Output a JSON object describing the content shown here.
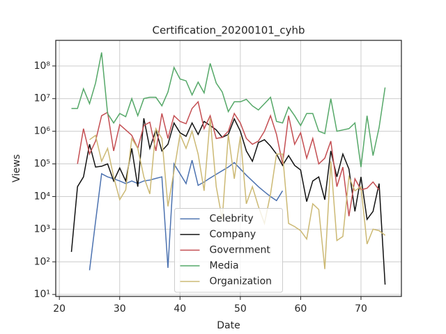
{
  "chart_data": {
    "type": "line",
    "title": "Certification_20200101_cyhb",
    "x_label": "Date",
    "y_label": "Views",
    "x": [
      22,
      23,
      24,
      25,
      26,
      27,
      28,
      29,
      30,
      31,
      32,
      33,
      34,
      35,
      36,
      37,
      38,
      39,
      40,
      41,
      42,
      43,
      44,
      45,
      46,
      47,
      48,
      49,
      50,
      51,
      52,
      53,
      54,
      55,
      56,
      57,
      58,
      59,
      60,
      61,
      62,
      63,
      64,
      65,
      66,
      67,
      68,
      69,
      70,
      71,
      72,
      73,
      74
    ],
    "series": [
      {
        "name": "Celebrity",
        "color": "#4c72b0",
        "values": [
          null,
          null,
          null,
          55,
          1700,
          50000,
          40000,
          35000,
          30000,
          25000,
          30000,
          25000,
          30000,
          32000,
          36000,
          40000,
          65,
          100000,
          50000,
          25000,
          130000,
          22000,
          28000,
          37000,
          48000,
          62000,
          80000,
          110000,
          70000,
          45000,
          30000,
          20000,
          14000,
          10000,
          7500,
          15000,
          null,
          null,
          null,
          null,
          null,
          null,
          null,
          null,
          null,
          null,
          null,
          null,
          null,
          null,
          null,
          null,
          null
        ]
      },
      {
        "name": "Company",
        "color": "#111111",
        "values": [
          200,
          20000,
          40000,
          400000,
          80000,
          85000,
          100000,
          30000,
          75000,
          30000,
          300000,
          20000,
          2500000,
          300000,
          1100000,
          250000,
          400000,
          1800000,
          900000,
          700000,
          1800000,
          800000,
          2000000,
          1500000,
          1100000,
          650000,
          800000,
          2400000,
          1000000,
          250000,
          120000,
          450000,
          550000,
          350000,
          200000,
          90000,
          180000,
          90000,
          65000,
          7000,
          30000,
          40000,
          8000,
          250000,
          40000,
          200000,
          70000,
          3500,
          40000,
          2000,
          3500,
          25000,
          20
        ]
      },
      {
        "name": "Government",
        "color": "#c44e52",
        "values": [
          null,
          100000,
          1200000,
          200000,
          500000,
          3000000,
          3800000,
          250000,
          1600000,
          1100000,
          750000,
          300000,
          1500000,
          1900000,
          250000,
          3500000,
          600000,
          3000000,
          2000000,
          1700000,
          5000000,
          8000000,
          1200000,
          3000000,
          600000,
          650000,
          1000000,
          3500000,
          1800000,
          600000,
          400000,
          500000,
          1000000,
          3000000,
          800000,
          100000,
          3000000,
          400000,
          900000,
          150000,
          600000,
          100000,
          150000,
          500000,
          20000,
          80000,
          2500,
          35000,
          16000,
          18000,
          28000,
          16000,
          null
        ]
      },
      {
        "name": "Media",
        "color": "#55a868",
        "values": [
          5000000,
          5000000,
          20000000,
          7000000,
          30000000,
          260000000,
          3500000,
          1800000,
          3500000,
          2800000,
          10000000,
          3000000,
          10000000,
          11000000,
          11000000,
          6000000,
          16000000,
          90000000,
          40000000,
          35000000,
          13000000,
          32000000,
          15000000,
          120000000,
          30000000,
          16000000,
          4000000,
          8000000,
          8000000,
          9500000,
          6000000,
          4500000,
          7000000,
          11000000,
          2000000,
          1800000,
          5500000,
          3000000,
          1500000,
          3500000,
          3500000,
          1000000,
          850000,
          10000000,
          1000000,
          1100000,
          1200000,
          1800000,
          80000,
          3000000,
          180000,
          1300000,
          22000000
        ]
      },
      {
        "name": "Organization",
        "color": "#ccb974",
        "values": [
          null,
          null,
          null,
          550000,
          750000,
          120000,
          300000,
          40000,
          8000,
          16000,
          600000,
          300000,
          40000,
          12000,
          1200000,
          600000,
          5000,
          60000,
          800000,
          300000,
          1000000,
          200000,
          15000,
          2500000,
          20000,
          2000,
          800000,
          35000,
          700000,
          6000,
          20000,
          5000,
          1500,
          12000,
          200000,
          200000,
          1500,
          1200,
          900,
          500,
          6000,
          4000,
          60,
          120000,
          450,
          600,
          40000,
          15000,
          20000,
          350,
          1000,
          900,
          650
        ]
      }
    ],
    "xlim": [
      19.4,
      76.7
    ],
    "xticks": [
      20,
      30,
      40,
      50,
      60,
      70
    ],
    "ylim": [
      8.7,
      610000000
    ],
    "yscale": "log",
    "yticks": [
      {
        "value": 10,
        "label": "10¹"
      },
      {
        "value": 100,
        "label": "10²"
      },
      {
        "value": 1000,
        "label": "10³"
      },
      {
        "value": 10000,
        "label": "10⁴"
      },
      {
        "value": 100000,
        "label": "10⁵"
      },
      {
        "value": 1000000,
        "label": "10⁶"
      },
      {
        "value": 10000000,
        "label": "10⁷"
      },
      {
        "value": 100000000,
        "label": "10⁸"
      }
    ],
    "grid": true,
    "legend": "lower center"
  }
}
